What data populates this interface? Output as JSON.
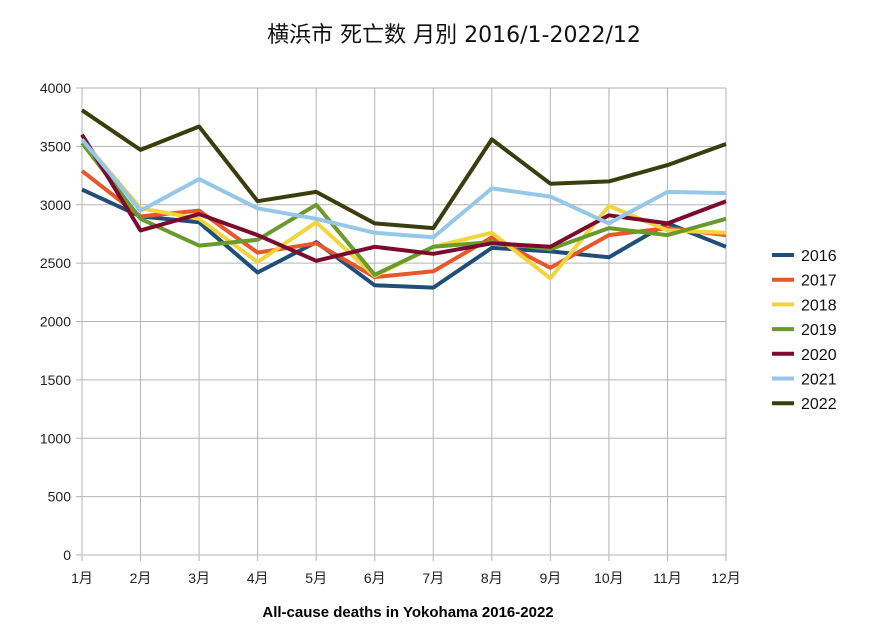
{
  "chart_data": {
    "type": "line",
    "title": "横浜市  死亡数  月別  2016/1-2022/12",
    "caption": "All-cause deaths in Yokohama 2016-2022",
    "xlabel": "",
    "ylabel": "",
    "categories": [
      "1月",
      "2月",
      "3月",
      "4月",
      "5月",
      "6月",
      "7月",
      "8月",
      "9月",
      "10月",
      "11月",
      "12月"
    ],
    "ylim": [
      0,
      4000
    ],
    "yticks": [
      "0",
      "500",
      "1000",
      "1500",
      "2000",
      "2500",
      "3000",
      "3500",
      "4000"
    ],
    "grid": true,
    "legend_position": "right",
    "series": [
      {
        "name": "2016",
        "color": "#1f4e79",
        "values": [
          3130,
          2900,
          2850,
          2420,
          2680,
          2310,
          2290,
          2630,
          2600,
          2550,
          2840,
          2640
        ]
      },
      {
        "name": "2017",
        "color": "#e8562a",
        "values": [
          3290,
          2900,
          2950,
          2590,
          2670,
          2380,
          2430,
          2720,
          2460,
          2740,
          2800,
          2740
        ]
      },
      {
        "name": "2018",
        "color": "#f2d43c",
        "values": [
          3560,
          2970,
          2880,
          2510,
          2850,
          2390,
          2640,
          2760,
          2370,
          2990,
          2780,
          2760
        ]
      },
      {
        "name": "2019",
        "color": "#6a9a2c",
        "values": [
          3530,
          2880,
          2650,
          2700,
          3000,
          2400,
          2640,
          2680,
          2620,
          2800,
          2740,
          2880
        ]
      },
      {
        "name": "2020",
        "color": "#7a0b2e",
        "values": [
          3600,
          2780,
          2920,
          2740,
          2520,
          2640,
          2580,
          2670,
          2640,
          2910,
          2840,
          3030
        ]
      },
      {
        "name": "2021",
        "color": "#95c7e8",
        "values": [
          3560,
          2950,
          3220,
          2970,
          2880,
          2760,
          2720,
          3140,
          3070,
          2840,
          3110,
          3100
        ]
      },
      {
        "name": "2022",
        "color": "#3a3d0c",
        "values": [
          3810,
          3470,
          3670,
          3030,
          3110,
          2840,
          2800,
          3560,
          3180,
          3200,
          3340,
          3520
        ]
      }
    ]
  }
}
